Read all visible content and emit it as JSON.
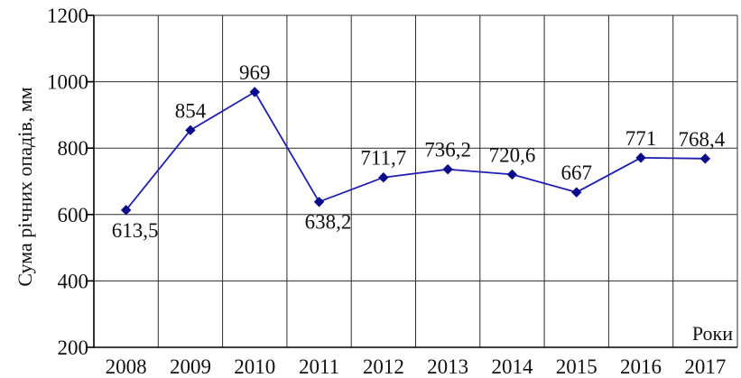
{
  "chart_data": {
    "type": "line",
    "title": "",
    "xlabel": "Роки",
    "ylabel": "Сума річних опадів, мм",
    "categories": [
      "2008",
      "2009",
      "2010",
      "2011",
      "2012",
      "2013",
      "2014",
      "2015",
      "2016",
      "2017"
    ],
    "series": [
      {
        "values": [
          613.5,
          854,
          969,
          638.2,
          711.7,
          736.2,
          720.6,
          667,
          771,
          768.4
        ],
        "labels": [
          "613,5",
          "854",
          "969",
          "638,2",
          "711,7",
          "736,2",
          "720,6",
          "667",
          "771",
          "768,4"
        ],
        "color": "#1f1fb4"
      }
    ],
    "ylim": [
      200,
      1200
    ],
    "yticks": [
      "200",
      "400",
      "600",
      "800",
      "1000",
      "1200"
    ],
    "grid": true,
    "legend": "none"
  }
}
